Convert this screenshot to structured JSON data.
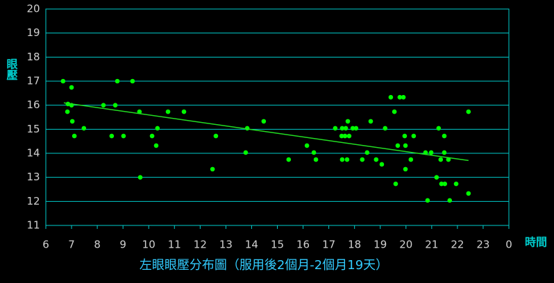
{
  "chart_data": {
    "type": "scatter",
    "title": "左眼眼壓分布圖（服用後2個月-2個月19天）",
    "x_label": "時間",
    "y_label": "眼壓",
    "xlim": [
      6,
      24
    ],
    "ylim": [
      11,
      20
    ],
    "xticks": [
      6,
      7,
      8,
      9,
      10,
      11,
      12,
      13,
      14,
      15,
      16,
      17,
      18,
      19,
      20,
      21,
      22,
      23,
      {
        "value": 24,
        "label": "0"
      }
    ],
    "yticks": [
      11,
      12,
      13,
      14,
      15,
      16,
      17,
      18,
      19,
      20
    ],
    "grid": true,
    "series": [
      {
        "color": "#00ff00",
        "x": [
          6.67,
          6.84,
          7.0,
          6.86,
          7.0,
          7.03,
          7.11,
          7.48,
          8.24,
          8.56,
          8.7,
          8.78,
          9.02,
          9.37,
          9.64,
          9.67,
          10.13,
          10.34,
          10.29,
          10.75,
          11.37,
          12.48,
          12.61,
          13.77,
          13.83,
          14.47,
          15.44,
          16.15,
          16.42,
          16.5,
          17.25,
          17.52,
          17.66,
          17.5,
          17.63,
          17.79,
          17.74,
          17.52,
          17.71,
          17.93,
          18.06,
          18.3,
          18.49,
          18.63,
          18.84,
          19.06,
          19.19,
          19.41,
          19.55,
          19.6,
          19.68,
          19.76,
          19.9,
          19.95,
          19.98,
          19.98,
          20.19,
          20.3,
          20.76,
          20.84,
          20.98,
          21.19,
          21.27,
          21.35,
          21.38,
          21.51,
          21.49,
          21.49,
          21.65,
          21.7,
          21.95,
          22.43,
          22.43
        ],
        "y": [
          17.0,
          15.73,
          16.74,
          16.05,
          16.0,
          15.33,
          14.72,
          15.04,
          16.0,
          14.72,
          16.0,
          17.0,
          14.72,
          17.0,
          15.73,
          13.0,
          14.72,
          15.04,
          14.32,
          15.73,
          15.73,
          13.34,
          14.72,
          14.03,
          15.04,
          15.33,
          13.74,
          14.32,
          14.03,
          13.74,
          15.04,
          15.04,
          15.04,
          14.72,
          14.72,
          14.72,
          15.33,
          13.74,
          13.74,
          15.04,
          15.04,
          13.74,
          14.03,
          15.33,
          13.74,
          13.54,
          15.04,
          16.33,
          15.73,
          12.73,
          14.32,
          16.33,
          16.33,
          14.72,
          14.32,
          13.34,
          13.74,
          14.72,
          14.03,
          12.04,
          14.03,
          13.0,
          15.04,
          13.74,
          12.73,
          12.73,
          14.72,
          14.03,
          13.74,
          12.04,
          12.73,
          15.73,
          12.33
        ]
      }
    ],
    "trendline": {
      "color": "#22dd22",
      "x": [
        6.7,
        22.43
      ],
      "y": [
        16.1,
        13.7
      ]
    }
  }
}
